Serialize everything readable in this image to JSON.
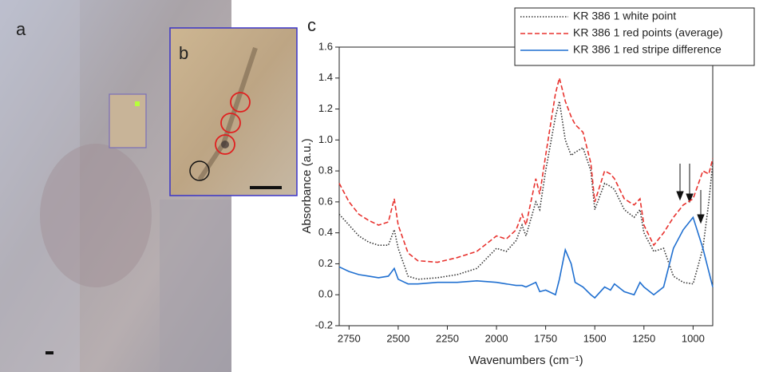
{
  "panel_labels": [
    "a",
    "b",
    "c"
  ],
  "chart_data": {
    "type": "line",
    "xlabel": "Wavenumbers (cm⁻¹)",
    "ylabel": "Absorbance (a.u.)",
    "x": [
      2800,
      2750,
      2700,
      2650,
      2600,
      2550,
      2520,
      2500,
      2450,
      2400,
      2300,
      2200,
      2100,
      2000,
      1950,
      1900,
      1870,
      1850,
      1800,
      1780,
      1750,
      1700,
      1680,
      1650,
      1620,
      1600,
      1560,
      1520,
      1500,
      1450,
      1420,
      1400,
      1350,
      1300,
      1270,
      1250,
      1200,
      1150,
      1100,
      1050,
      1000,
      950,
      920,
      900
    ],
    "series": [
      {
        "name": "KR 386 1 white point",
        "color": "#333333",
        "dash": "1.5,2",
        "values": [
          0.52,
          0.45,
          0.38,
          0.34,
          0.32,
          0.32,
          0.42,
          0.3,
          0.12,
          0.1,
          0.11,
          0.13,
          0.17,
          0.3,
          0.28,
          0.35,
          0.45,
          0.38,
          0.6,
          0.55,
          0.8,
          1.15,
          1.25,
          1.0,
          0.9,
          0.92,
          0.95,
          0.8,
          0.55,
          0.72,
          0.7,
          0.68,
          0.55,
          0.5,
          0.55,
          0.4,
          0.28,
          0.3,
          0.12,
          0.08,
          0.07,
          0.3,
          0.6,
          0.85
        ]
      },
      {
        "name": "KR 386 1 red points (average)",
        "color": "#e8322e",
        "dash": "6,3",
        "values": [
          0.72,
          0.6,
          0.52,
          0.48,
          0.45,
          0.47,
          0.62,
          0.45,
          0.27,
          0.22,
          0.21,
          0.24,
          0.28,
          0.38,
          0.36,
          0.42,
          0.52,
          0.45,
          0.75,
          0.65,
          0.9,
          1.3,
          1.4,
          1.25,
          1.15,
          1.1,
          1.05,
          0.85,
          0.6,
          0.8,
          0.78,
          0.75,
          0.62,
          0.58,
          0.62,
          0.45,
          0.32,
          0.4,
          0.5,
          0.58,
          0.62,
          0.8,
          0.78,
          0.88
        ]
      },
      {
        "name": "KR 386 1 red stripe difference",
        "color": "#1f6fd0",
        "dash": "",
        "values": [
          0.18,
          0.15,
          0.13,
          0.12,
          0.11,
          0.12,
          0.17,
          0.1,
          0.07,
          0.07,
          0.08,
          0.08,
          0.09,
          0.08,
          0.07,
          0.06,
          0.06,
          0.05,
          0.08,
          0.02,
          0.03,
          0.0,
          0.1,
          0.29,
          0.2,
          0.08,
          0.05,
          0.0,
          -0.02,
          0.05,
          0.03,
          0.07,
          0.02,
          0.0,
          0.08,
          0.05,
          0.0,
          0.05,
          0.3,
          0.42,
          0.5,
          0.3,
          0.15,
          0.05
        ]
      }
    ],
    "xlim": [
      2800,
      900
    ],
    "xticks": [
      2750,
      2500,
      2250,
      2000,
      1750,
      1500,
      1250,
      1000
    ],
    "ylim": [
      -0.2,
      1.6
    ],
    "yticks": [
      -0.2,
      {
        "value": 0,
        "label": "0.0"
      },
      0.2,
      0.4,
      0.6,
      0.8,
      {
        "value": 1,
        "label": "1.0"
      },
      1.2,
      1.4,
      1.6
    ],
    "legend": "top-right"
  }
}
